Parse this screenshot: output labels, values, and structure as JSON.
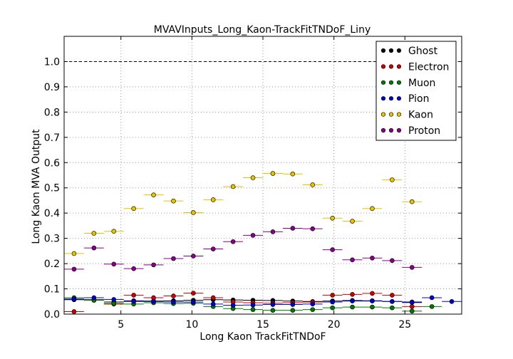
{
  "chart_data": {
    "type": "scatter",
    "title": "MVAVInputs_Long_Kaon-TrackFitTNDoF_Liny",
    "xlabel": "Long Kaon TrackFitTNDoF",
    "ylabel": "Long Kaon MVA Output",
    "xlim": [
      1,
      29
    ],
    "ylim": [
      0,
      1.1
    ],
    "x_ticks": [
      5,
      10,
      15,
      20,
      25
    ],
    "x_tick_labels": [
      "5",
      "10",
      "15",
      "20",
      "25"
    ],
    "y_ticks": [
      0.0,
      0.1,
      0.2,
      0.3,
      0.4,
      0.5,
      0.6,
      0.7,
      0.8,
      0.9,
      1.0
    ],
    "y_tick_labels": [
      "0.0",
      "0.1",
      "0.2",
      "0.3",
      "0.4",
      "0.5",
      "0.6",
      "0.7",
      "0.8",
      "0.9",
      "1.0"
    ],
    "grid": true,
    "reference_line_y": 1.0,
    "legend_position": "top-right",
    "series": [
      {
        "name": "Ghost",
        "color": "#000000",
        "x": [
          1.7,
          3.1,
          4.5,
          5.9,
          7.3,
          8.7,
          10.1,
          11.5,
          12.9,
          14.3,
          15.7,
          17.1,
          18.5,
          19.9,
          21.3,
          22.7,
          24.1,
          25.5
        ],
        "y": [
          0.057,
          0.057,
          0.048,
          0.053,
          0.052,
          0.053,
          0.055,
          0.057,
          0.056,
          0.055,
          0.054,
          0.052,
          0.05,
          0.052,
          0.054,
          0.053,
          0.05,
          0.048
        ]
      },
      {
        "name": "Electron",
        "color": "#cc0000",
        "x": [
          1.7,
          3.1,
          4.5,
          5.9,
          7.3,
          8.7,
          10.1,
          11.5,
          12.9,
          14.3,
          15.7,
          17.1,
          18.5,
          19.9,
          21.3,
          22.7,
          24.1,
          25.5
        ],
        "y": [
          0.01,
          0.055,
          0.04,
          0.075,
          0.065,
          0.072,
          0.083,
          0.065,
          0.048,
          0.045,
          0.043,
          0.045,
          0.048,
          0.075,
          0.078,
          0.082,
          0.075,
          0.03
        ]
      },
      {
        "name": "Muon",
        "color": "#007700",
        "x": [
          1.7,
          3.1,
          4.5,
          5.9,
          7.3,
          8.7,
          10.1,
          11.5,
          12.9,
          14.3,
          15.7,
          17.1,
          18.5,
          19.9,
          21.3,
          22.7,
          24.1,
          25.5,
          26.9
        ],
        "y": [
          0.065,
          0.055,
          0.042,
          0.04,
          0.045,
          0.042,
          0.043,
          0.03,
          0.022,
          0.018,
          0.015,
          0.015,
          0.018,
          0.025,
          0.028,
          0.028,
          0.025,
          0.012,
          0.03
        ]
      },
      {
        "name": "Pion",
        "color": "#0000cc",
        "x": [
          1.7,
          3.1,
          4.5,
          5.9,
          7.3,
          8.7,
          10.1,
          11.5,
          12.9,
          14.3,
          15.7,
          17.1,
          18.5,
          19.9,
          21.3,
          22.7,
          24.1,
          25.5,
          26.9,
          28.3
        ],
        "y": [
          0.06,
          0.065,
          0.058,
          0.05,
          0.05,
          0.048,
          0.048,
          0.04,
          0.035,
          0.036,
          0.038,
          0.038,
          0.04,
          0.048,
          0.052,
          0.052,
          0.05,
          0.046,
          0.065,
          0.05
        ]
      },
      {
        "name": "Kaon",
        "color": "#e6c200",
        "x": [
          1.7,
          3.1,
          4.5,
          5.9,
          7.3,
          8.7,
          10.1,
          11.5,
          12.9,
          14.3,
          15.7,
          17.1,
          18.5,
          19.9,
          21.3,
          22.7,
          24.1,
          25.5
        ],
        "y": [
          0.24,
          0.32,
          0.328,
          0.418,
          0.472,
          0.448,
          0.402,
          0.453,
          0.505,
          0.54,
          0.557,
          0.555,
          0.512,
          0.38,
          0.368,
          0.418,
          0.532,
          0.445
        ]
      },
      {
        "name": "Proton",
        "color": "#880088",
        "x": [
          1.7,
          3.1,
          4.5,
          5.9,
          7.3,
          8.7,
          10.1,
          11.5,
          12.9,
          14.3,
          15.7,
          17.1,
          18.5,
          19.9,
          21.3,
          22.7,
          24.1,
          25.5
        ],
        "y": [
          0.178,
          0.262,
          0.198,
          0.18,
          0.195,
          0.22,
          0.23,
          0.258,
          0.287,
          0.312,
          0.326,
          0.34,
          0.338,
          0.255,
          0.215,
          0.222,
          0.212,
          0.185
        ]
      }
    ]
  }
}
